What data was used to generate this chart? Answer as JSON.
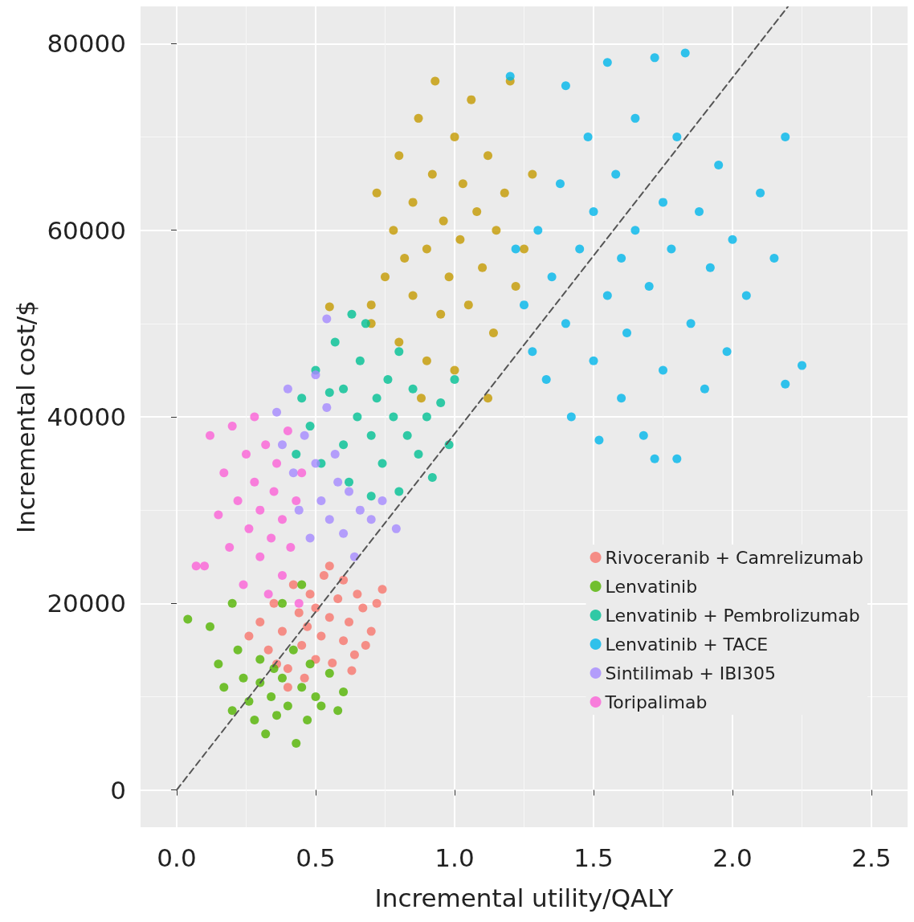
{
  "chart_data": {
    "type": "scatter",
    "xlabel": "Incremental utility/QALY",
    "ylabel": "Incremental cost/$",
    "xlim": [
      -0.13,
      2.63
    ],
    "ylim": [
      -4000,
      84000
    ],
    "xticks": [
      {
        "value": 0,
        "label": "0.0"
      },
      0.5,
      {
        "value": 1,
        "label": "1.0"
      },
      1.5,
      {
        "value": 2,
        "label": "2.0"
      },
      2.5
    ],
    "yticks": [
      0,
      20000,
      40000,
      60000,
      80000
    ],
    "grid": true,
    "legend": "bottom right",
    "marker": "circle",
    "series": [
      {
        "name": "Rivoceranib + Camrelizumab",
        "color": "#f8766d",
        "x": [
          0.26,
          0.3,
          0.33,
          0.35,
          0.38,
          0.4,
          0.42,
          0.44,
          0.45,
          0.47,
          0.48,
          0.5,
          0.5,
          0.52,
          0.53,
          0.55,
          0.56,
          0.58,
          0.6,
          0.6,
          0.62,
          0.64,
          0.65,
          0.67,
          0.7,
          0.72,
          0.74,
          0.68,
          0.4,
          0.55,
          0.36,
          0.46,
          0.63
        ],
        "values": [
          16500,
          18000,
          15000,
          20000,
          17000,
          13000,
          22000,
          19000,
          15500,
          17500,
          21000,
          14000,
          19500,
          16500,
          23000,
          18500,
          13600,
          20500,
          16000,
          22500,
          18000,
          14500,
          21000,
          19500,
          17000,
          20000,
          21500,
          15500,
          11000,
          24000,
          13500,
          12000,
          12800
        ]
      },
      {
        "color": "#c49a00",
        "x": [
          0.7,
          0.7,
          0.72,
          0.75,
          0.78,
          0.8,
          0.8,
          0.82,
          0.85,
          0.85,
          0.87,
          0.9,
          0.9,
          0.92,
          0.93,
          0.95,
          0.96,
          0.98,
          1.0,
          1.0,
          1.02,
          1.03,
          1.05,
          1.06,
          1.08,
          1.1,
          1.12,
          1.14,
          1.15,
          1.18,
          1.2,
          1.22,
          1.25,
          1.28,
          0.55,
          0.88,
          1.12
        ],
        "values": [
          50000,
          52000,
          64000,
          55000,
          60000,
          48000,
          68000,
          57000,
          53000,
          63000,
          72000,
          46000,
          58000,
          66000,
          76000,
          51000,
          61000,
          55000,
          70000,
          45000,
          59000,
          65000,
          52000,
          74000,
          62000,
          56000,
          68000,
          49000,
          60000,
          64000,
          76000,
          54000,
          58000,
          66000,
          51800,
          42000,
          42000
        ]
      },
      {
        "name": "Lenvatinib",
        "color": "#53b400",
        "x": [
          0.04,
          0.12,
          0.15,
          0.17,
          0.2,
          0.22,
          0.24,
          0.26,
          0.28,
          0.3,
          0.3,
          0.32,
          0.34,
          0.35,
          0.36,
          0.38,
          0.4,
          0.42,
          0.43,
          0.45,
          0.47,
          0.48,
          0.5,
          0.52,
          0.55,
          0.58,
          0.6,
          0.38,
          0.45,
          0.2
        ],
        "values": [
          18300,
          17500,
          13500,
          11000,
          8500,
          15000,
          12000,
          9500,
          7500,
          14000,
          11500,
          6000,
          10000,
          13000,
          8000,
          12000,
          9000,
          15000,
          5000,
          11000,
          7500,
          13500,
          10000,
          9000,
          12500,
          8500,
          10500,
          20000,
          22000,
          20000
        ]
      },
      {
        "name": "Lenvatinib + Pembrolizumab",
        "color": "#00c094",
        "x": [
          0.43,
          0.45,
          0.48,
          0.5,
          0.52,
          0.55,
          0.57,
          0.6,
          0.6,
          0.62,
          0.65,
          0.66,
          0.68,
          0.7,
          0.72,
          0.74,
          0.76,
          0.78,
          0.8,
          0.8,
          0.83,
          0.85,
          0.87,
          0.9,
          0.92,
          0.95,
          0.98,
          1.0,
          0.7,
          0.63
        ],
        "values": [
          36000,
          42000,
          39000,
          45000,
          35000,
          42600,
          48000,
          37000,
          43000,
          33000,
          40000,
          46000,
          50000,
          38000,
          42000,
          35000,
          44000,
          40000,
          32000,
          47000,
          38000,
          43000,
          36000,
          40000,
          33500,
          41500,
          37000,
          44000,
          31500,
          51000
        ]
      },
      {
        "name": "Lenvatinib + TACE",
        "color": "#00b6eb",
        "x": [
          1.2,
          1.22,
          1.25,
          1.28,
          1.3,
          1.33,
          1.35,
          1.38,
          1.4,
          1.4,
          1.42,
          1.45,
          1.48,
          1.5,
          1.5,
          1.52,
          1.55,
          1.55,
          1.58,
          1.6,
          1.6,
          1.62,
          1.65,
          1.65,
          1.68,
          1.7,
          1.72,
          1.72,
          1.75,
          1.75,
          1.78,
          1.8,
          1.8,
          1.83,
          1.85,
          1.88,
          1.9,
          1.92,
          1.95,
          1.98,
          2.0,
          2.05,
          2.1,
          2.15,
          2.19,
          2.19,
          2.25
        ],
        "values": [
          76500,
          58000,
          52000,
          47000,
          60000,
          44000,
          55000,
          65000,
          75500,
          50000,
          40000,
          58000,
          70000,
          46000,
          62000,
          37500,
          53000,
          78000,
          66000,
          42000,
          57000,
          49000,
          72000,
          60000,
          38000,
          54000,
          78500,
          35500,
          63000,
          45000,
          58000,
          70000,
          35500,
          79000,
          50000,
          62000,
          43000,
          56000,
          67000,
          47000,
          59000,
          53000,
          64000,
          57000,
          70000,
          43500,
          45500
        ]
      },
      {
        "name": "Sintilimab + IBI305",
        "color": "#a58aff",
        "x": [
          0.36,
          0.38,
          0.4,
          0.42,
          0.44,
          0.46,
          0.48,
          0.5,
          0.52,
          0.54,
          0.55,
          0.57,
          0.58,
          0.6,
          0.62,
          0.64,
          0.66,
          0.7,
          0.74,
          0.79,
          0.54,
          0.5
        ],
        "values": [
          40500,
          37000,
          43000,
          34000,
          30000,
          38000,
          27000,
          35000,
          31000,
          41000,
          29000,
          36000,
          33000,
          27500,
          32000,
          25000,
          30000,
          29000,
          31000,
          28000,
          50500,
          44500
        ]
      },
      {
        "name": "Toripalimab",
        "color": "#fb61d7",
        "x": [
          0.07,
          0.1,
          0.12,
          0.15,
          0.17,
          0.19,
          0.2,
          0.22,
          0.24,
          0.25,
          0.26,
          0.28,
          0.28,
          0.3,
          0.3,
          0.32,
          0.33,
          0.34,
          0.35,
          0.36,
          0.38,
          0.38,
          0.4,
          0.41,
          0.43,
          0.44,
          0.45
        ],
        "values": [
          24000,
          24000,
          38000,
          29500,
          34000,
          26000,
          39000,
          31000,
          22000,
          36000,
          28000,
          40000,
          33000,
          25000,
          30000,
          37000,
          21000,
          27000,
          32000,
          35000,
          23000,
          29000,
          38500,
          26000,
          31000,
          20000,
          34000
        ]
      },
      {
        "type": "line",
        "color": "#555555",
        "line_style": "dashed",
        "marker": "none",
        "x": [
          0,
          2.2
        ],
        "values": [
          0,
          84000
        ]
      }
    ]
  }
}
